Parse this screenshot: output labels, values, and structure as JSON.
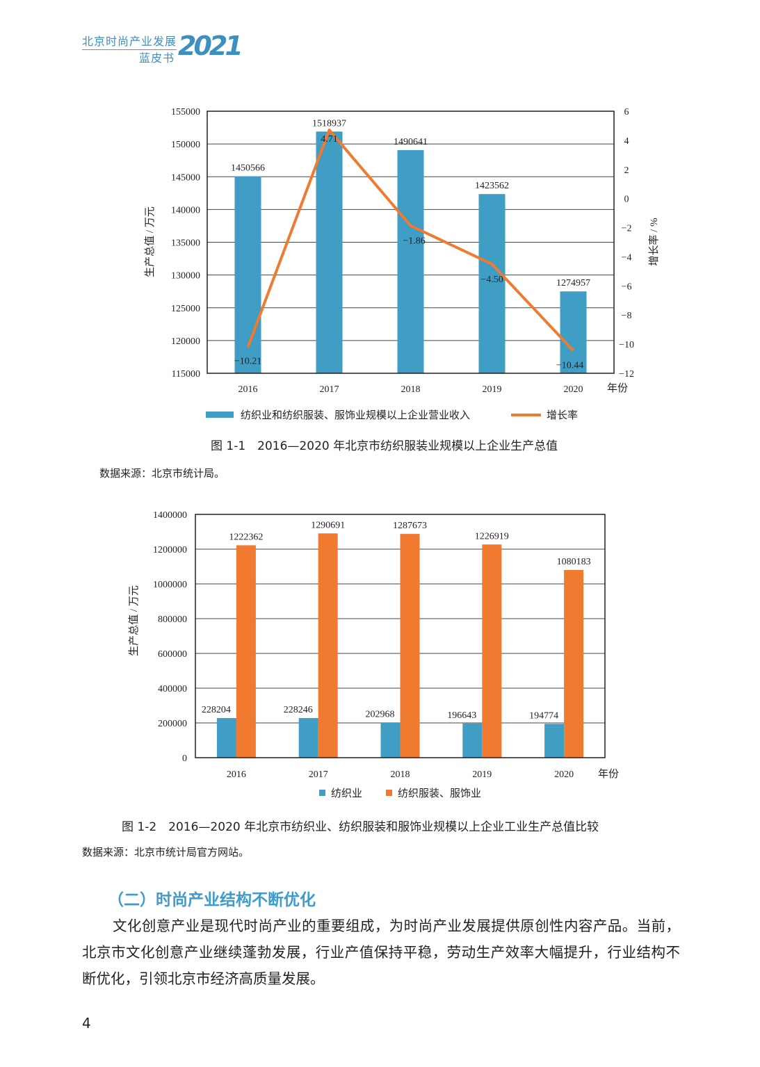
{
  "header": {
    "line1": "北京时尚产业发展",
    "line2": "蓝皮书",
    "year_logo": "2021"
  },
  "figure1": {
    "caption": "图 1-1　2016—2020 年北京市纺织服装业规模以上企业生产总值",
    "source": "数据来源：北京市统计局。"
  },
  "figure2": {
    "caption": "图 1-2　2016—2020 年北京市纺织业、纺织服装和服饰业规模以上企业工业生产总值比较",
    "source": "数据来源：北京市统计局官方网站。"
  },
  "section": {
    "heading": "（二）时尚产业结构不断优化",
    "paragraph": "文化创意产业是现代时尚产业的重要组成，为时尚产业发展提供原创性内容产品。当前，北京市文化创意产业继续蓬勃发展，行业产值保持平稳，劳动生产效率大幅提升，行业结构不断优化，引领北京市经济高质量发展。"
  },
  "page_number": "4",
  "colors": {
    "blue": "#409dc3",
    "orange": "#ef7a30",
    "header": "#3d8fc0"
  },
  "chart_data": [
    {
      "type": "bar+line",
      "categories": [
        "2016",
        "2017",
        "2018",
        "2019",
        "2020"
      ],
      "xlabel": "年份",
      "ylabel": "生产总值 / 万元",
      "y2label": "增长率 / %",
      "yticks": [
        "115000",
        "120000",
        "125000",
        "130000",
        "135000",
        "140000",
        "145000",
        "150000",
        "155000"
      ],
      "y2ticks": [
        "-12",
        "-10",
        "-8",
        "-6",
        "-4",
        "-2",
        "0",
        "2",
        "4",
        "6"
      ],
      "ylim": [
        115000,
        155000
      ],
      "y2lim": [
        -12,
        6
      ],
      "series": [
        {
          "name": "纺织业和纺织服装、服饰业规模以上企业营业收入",
          "type": "bar",
          "values": [
            1450566,
            1518937,
            1490641,
            1423562,
            1274957
          ],
          "labels": [
            "1450566",
            "1518937",
            "1490641",
            "1423562",
            "1274957"
          ]
        },
        {
          "name": "增长率",
          "type": "line",
          "values": [
            -10.21,
            4.71,
            -1.86,
            -4.5,
            -10.44
          ],
          "labels": [
            "−10.21",
            "4.71",
            "−1.86",
            "−4.50",
            "−10.44"
          ]
        }
      ]
    },
    {
      "type": "bar",
      "categories": [
        "2016",
        "2017",
        "2018",
        "2019",
        "2020"
      ],
      "xlabel": "年份",
      "ylabel": "生产总值 / 万元",
      "yticks": [
        "0",
        "200000",
        "400000",
        "600000",
        "800000",
        "1000000",
        "1200000",
        "1400000"
      ],
      "ylim": [
        0,
        1400000
      ],
      "series": [
        {
          "name": "纺织业",
          "values": [
            228204,
            228246,
            202968,
            196643,
            194774
          ],
          "labels": [
            "228204",
            "228246",
            "202968",
            "196643",
            "194774"
          ]
        },
        {
          "name": "纺织服装、服饰业",
          "values": [
            1222362,
            1290691,
            1287673,
            1226919,
            1080183
          ],
          "labels": [
            "1222362",
            "1290691",
            "1287673",
            "1226919",
            "1080183"
          ]
        }
      ]
    }
  ]
}
